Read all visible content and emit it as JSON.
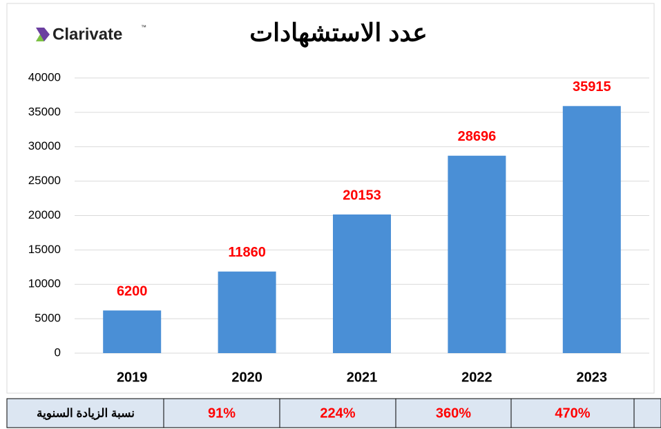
{
  "chart_data": {
    "type": "bar",
    "title": "عدد الاستشهادات",
    "logo": "Clarivate",
    "logo_mark": "™",
    "categories": [
      "2019",
      "2020",
      "2021",
      "2022",
      "2023"
    ],
    "values": [
      6200,
      11860,
      20153,
      28696,
      35915
    ],
    "color": "#4a8fd6",
    "value_label_color": "#ff0000",
    "ylim": [
      0,
      40000
    ],
    "yticks": [
      0,
      5000,
      10000,
      15000,
      20000,
      25000,
      30000,
      35000,
      40000
    ],
    "grid": true
  },
  "table": {
    "row_label": "نسبة الزيادة السنوية",
    "cells": [
      "91%",
      "224%",
      "360%",
      "470%",
      ""
    ]
  }
}
